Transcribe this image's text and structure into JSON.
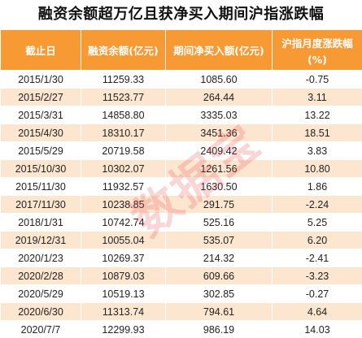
{
  "title": "融资余额超万亿且获净买入期间沪指涨跌幅",
  "watermark": "数据宝",
  "table": {
    "headers": [
      "截止日",
      "融资余额(亿元)",
      "期间净买入额(亿元)",
      "沪指月度涨跌幅",
      "(%)"
    ],
    "rows": [
      [
        "2015/1/30",
        "11259.33",
        "1085.60",
        "-0.75"
      ],
      [
        "2015/2/27",
        "11523.77",
        "264.44",
        "3.11"
      ],
      [
        "2015/3/31",
        "14858.80",
        "3335.03",
        "13.22"
      ],
      [
        "2015/4/30",
        "18310.17",
        "3451.36",
        "18.51"
      ],
      [
        "2015/5/29",
        "20719.58",
        "2409.42",
        "3.83"
      ],
      [
        "2015/10/30",
        "10302.07",
        "1261.56",
        "10.80"
      ],
      [
        "2015/11/30",
        "11932.57",
        "1630.50",
        "1.86"
      ],
      [
        "2017/11/30",
        "10238.85",
        "291.75",
        "-2.24"
      ],
      [
        "2018/1/31",
        "10742.74",
        "525.16",
        "5.25"
      ],
      [
        "2019/12/31",
        "10055.04",
        "535.07",
        "6.20"
      ],
      [
        "2020/1/23",
        "10269.37",
        "214.32",
        "-2.41"
      ],
      [
        "2020/2/28",
        "10879.03",
        "609.66",
        "-3.23"
      ],
      [
        "2020/5/29",
        "10519.13",
        "302.85",
        "-0.27"
      ],
      [
        "2020/6/30",
        "11313.74",
        "794.61",
        "4.64"
      ],
      [
        "2020/7/7",
        "12299.93",
        "986.19",
        "14.03"
      ]
    ]
  },
  "colors": {
    "header_bg": "#f79a34",
    "stripe_bg": "#fde6d0",
    "watermark": "#e24646"
  }
}
